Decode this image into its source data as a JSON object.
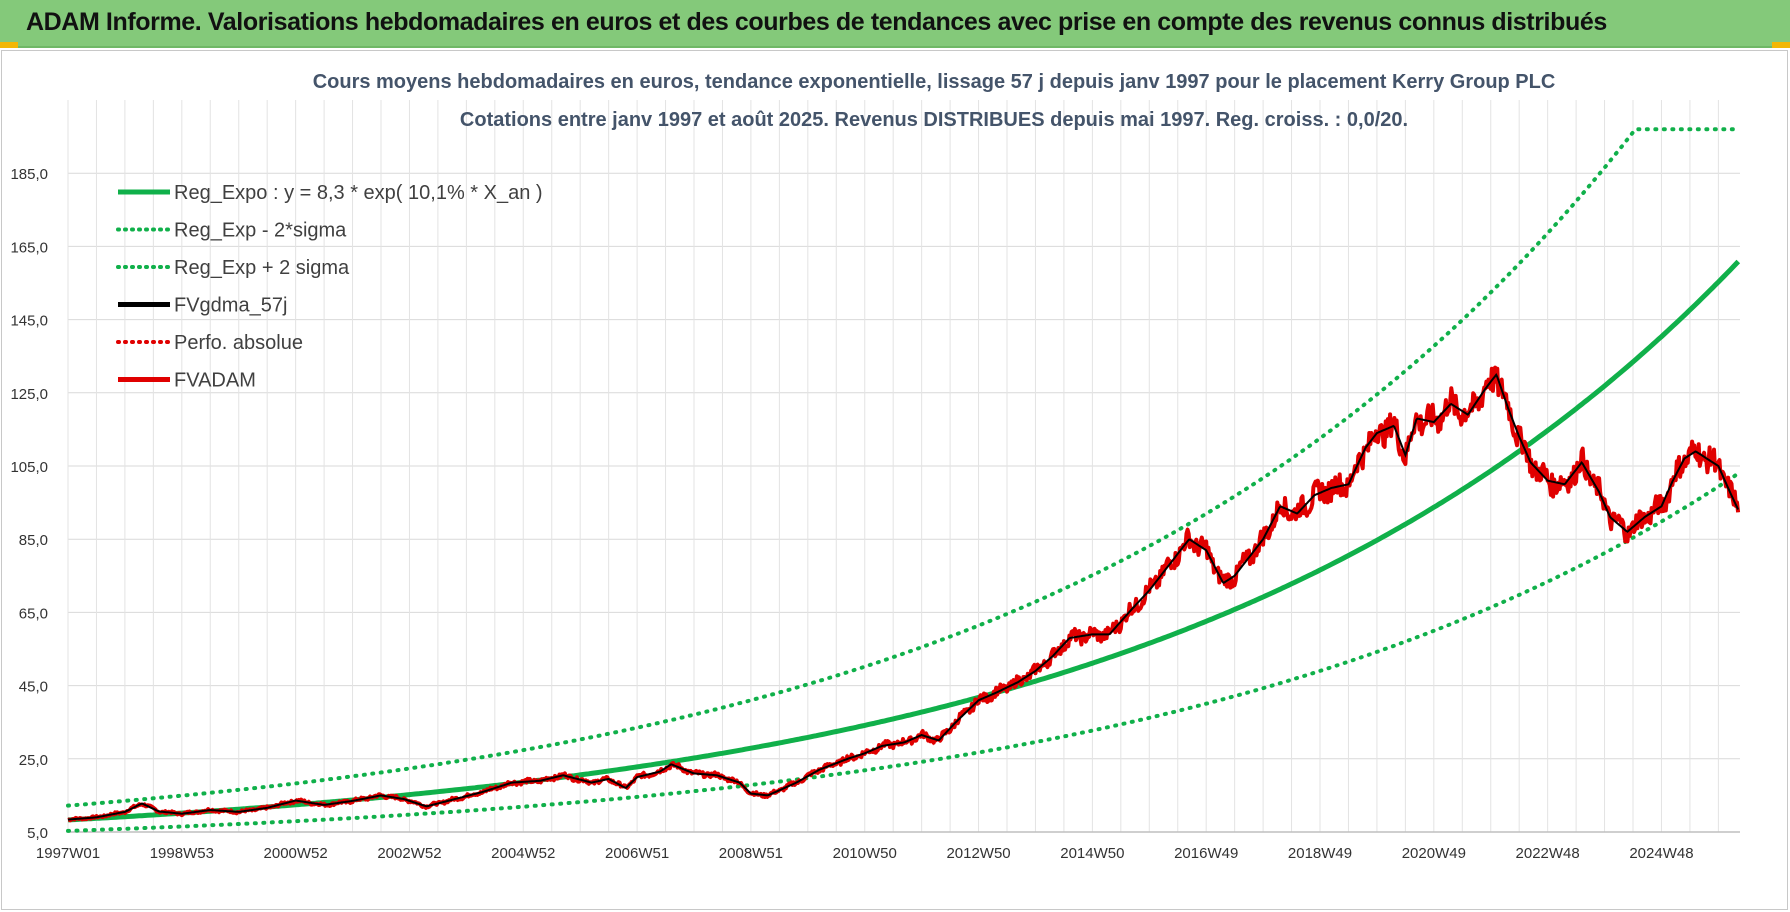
{
  "header": {
    "title": "ADAM Informe. Valorisations hebdomadaires en euros et des courbes de tendances avec prise en compte des revenus connus distribués"
  },
  "chart_data": {
    "type": "line",
    "title_lines": [
      "Cours moyens hebdomadaires en euros, tendance exponentielle, lissage 57 j depuis janv 1997 pour le placement Kerry Group PLC",
      "Cotations entre janv 1997 et août 2025. Revenus DISTRIBUES depuis mai 1997. Reg. croiss. : 0,0/20."
    ],
    "x_tick_labels": [
      "1997W01",
      "1998W53",
      "2000W52",
      "2002W52",
      "2004W52",
      "2006W51",
      "2008W51",
      "2010W50",
      "2012W50",
      "2014W50",
      "2016W49",
      "2018W49",
      "2020W49",
      "2022W48",
      "2024W48"
    ],
    "x_range": [
      1997.0,
      2025.6
    ],
    "y_ticks": [
      "5,0",
      "25,0",
      "45,0",
      "65,0",
      "85,0",
      "105,0",
      "125,0",
      "145,0",
      "165,0",
      "185,0"
    ],
    "ylim": [
      5,
      205
    ],
    "grid": true,
    "legend_position": "top-left",
    "legend": [
      {
        "label": "Reg_Expo : y = 8,3 * exp( 10,1% *  X_an )",
        "color": "#10b04a",
        "style": "solid"
      },
      {
        "label": "Reg_Exp - 2*sigma",
        "color": "#10b04a",
        "style": "dotted"
      },
      {
        "label": "Reg_Exp + 2 sigma",
        "color": "#10b04a",
        "style": "dotted"
      },
      {
        "label": "FVgdma_57j",
        "color": "#000000",
        "style": "solid"
      },
      {
        "label": "Perfo. absolue",
        "color": "#e00000",
        "style": "dotted"
      },
      {
        "label": "FVADAM",
        "color": "#e00000",
        "style": "solid"
      }
    ],
    "series": [
      {
        "name": "Reg_Expo : y = 8,3 * exp( 10,1% *  X_an )",
        "type": "exponential",
        "a": 8.3,
        "rate": 0.101,
        "color": "#10b04a"
      },
      {
        "name": "Reg_Exp - 2*sigma",
        "type": "exponential_band",
        "factor": 0.64,
        "color": "#10b04a"
      },
      {
        "name": "Reg_Exp + 2 sigma",
        "type": "exponential_band",
        "factor": 1.47,
        "cap": 197,
        "color": "#10b04a"
      },
      {
        "name": "FVADAM",
        "color": "#e00000",
        "points": [
          [
            1997.0,
            8.4
          ],
          [
            1997.5,
            9.0
          ],
          [
            1998.0,
            10.5
          ],
          [
            1998.3,
            12.8
          ],
          [
            1998.6,
            10.6
          ],
          [
            1999.0,
            10.0
          ],
          [
            1999.5,
            11.0
          ],
          [
            2000.0,
            10.5
          ],
          [
            2000.5,
            11.6
          ],
          [
            2001.0,
            13.6
          ],
          [
            2001.5,
            12.4
          ],
          [
            2002.0,
            13.5
          ],
          [
            2002.5,
            15.0
          ],
          [
            2002.9,
            14.0
          ],
          [
            2003.3,
            12.0
          ],
          [
            2003.8,
            14.0
          ],
          [
            2004.3,
            16.0
          ],
          [
            2004.8,
            18.5
          ],
          [
            2005.3,
            19.0
          ],
          [
            2005.7,
            20.5
          ],
          [
            2006.2,
            18.5
          ],
          [
            2006.5,
            19.5
          ],
          [
            2006.8,
            17.0
          ],
          [
            2007.0,
            20.0
          ],
          [
            2007.4,
            21.5
          ],
          [
            2007.6,
            23.5
          ],
          [
            2008.0,
            21.0
          ],
          [
            2008.4,
            20.5
          ],
          [
            2008.8,
            18.5
          ],
          [
            2009.0,
            15.5
          ],
          [
            2009.3,
            15.0
          ],
          [
            2009.8,
            18.5
          ],
          [
            2010.2,
            22.0
          ],
          [
            2010.7,
            25.0
          ],
          [
            2011.0,
            26.5
          ],
          [
            2011.3,
            28.5
          ],
          [
            2011.7,
            29.5
          ],
          [
            2012.0,
            31.5
          ],
          [
            2012.3,
            30.0
          ],
          [
            2012.6,
            35.0
          ],
          [
            2013.0,
            41.0
          ],
          [
            2013.3,
            43.0
          ],
          [
            2013.7,
            46.0
          ],
          [
            2014.0,
            49.0
          ],
          [
            2014.3,
            53.0
          ],
          [
            2014.6,
            58.0
          ],
          [
            2015.0,
            59.0
          ],
          [
            2015.3,
            59.0
          ],
          [
            2015.7,
            66.0
          ],
          [
            2016.0,
            71.0
          ],
          [
            2016.4,
            79.0
          ],
          [
            2016.7,
            85.0
          ],
          [
            2017.0,
            82.0
          ],
          [
            2017.3,
            73.0
          ],
          [
            2017.5,
            75.0
          ],
          [
            2017.8,
            81.0
          ],
          [
            2018.0,
            85.0
          ],
          [
            2018.3,
            94.0
          ],
          [
            2018.6,
            92.0
          ],
          [
            2018.9,
            97.0
          ],
          [
            2019.2,
            99.0
          ],
          [
            2019.5,
            100.0
          ],
          [
            2019.8,
            110.0
          ],
          [
            2020.0,
            114.0
          ],
          [
            2020.3,
            116.0
          ],
          [
            2020.5,
            108.0
          ],
          [
            2020.7,
            118.0
          ],
          [
            2021.0,
            117.0
          ],
          [
            2021.3,
            122.0
          ],
          [
            2021.6,
            119.0
          ],
          [
            2021.9,
            126.0
          ],
          [
            2022.1,
            130.0
          ],
          [
            2022.3,
            121.0
          ],
          [
            2022.5,
            113.0
          ],
          [
            2022.7,
            106.0
          ],
          [
            2023.0,
            101.0
          ],
          [
            2023.3,
            100.0
          ],
          [
            2023.6,
            106.0
          ],
          [
            2023.9,
            98.0
          ],
          [
            2024.1,
            91.0
          ],
          [
            2024.4,
            87.0
          ],
          [
            2024.7,
            91.0
          ],
          [
            2025.0,
            94.0
          ],
          [
            2025.2,
            101.0
          ],
          [
            2025.4,
            107.0
          ],
          [
            2025.6,
            109.0
          ],
          [
            2025.8,
            107.0
          ],
          [
            2026.0,
            105.0
          ],
          [
            2026.2,
            98.0
          ],
          [
            2026.35,
            93.0
          ]
        ]
      },
      {
        "name": "FVgdma_57j",
        "color": "#000000",
        "smoothing": "57j"
      },
      {
        "name": "Perfo. absolue",
        "color": "#e00000",
        "style": "dotted",
        "tracks": "FVADAM"
      }
    ]
  }
}
